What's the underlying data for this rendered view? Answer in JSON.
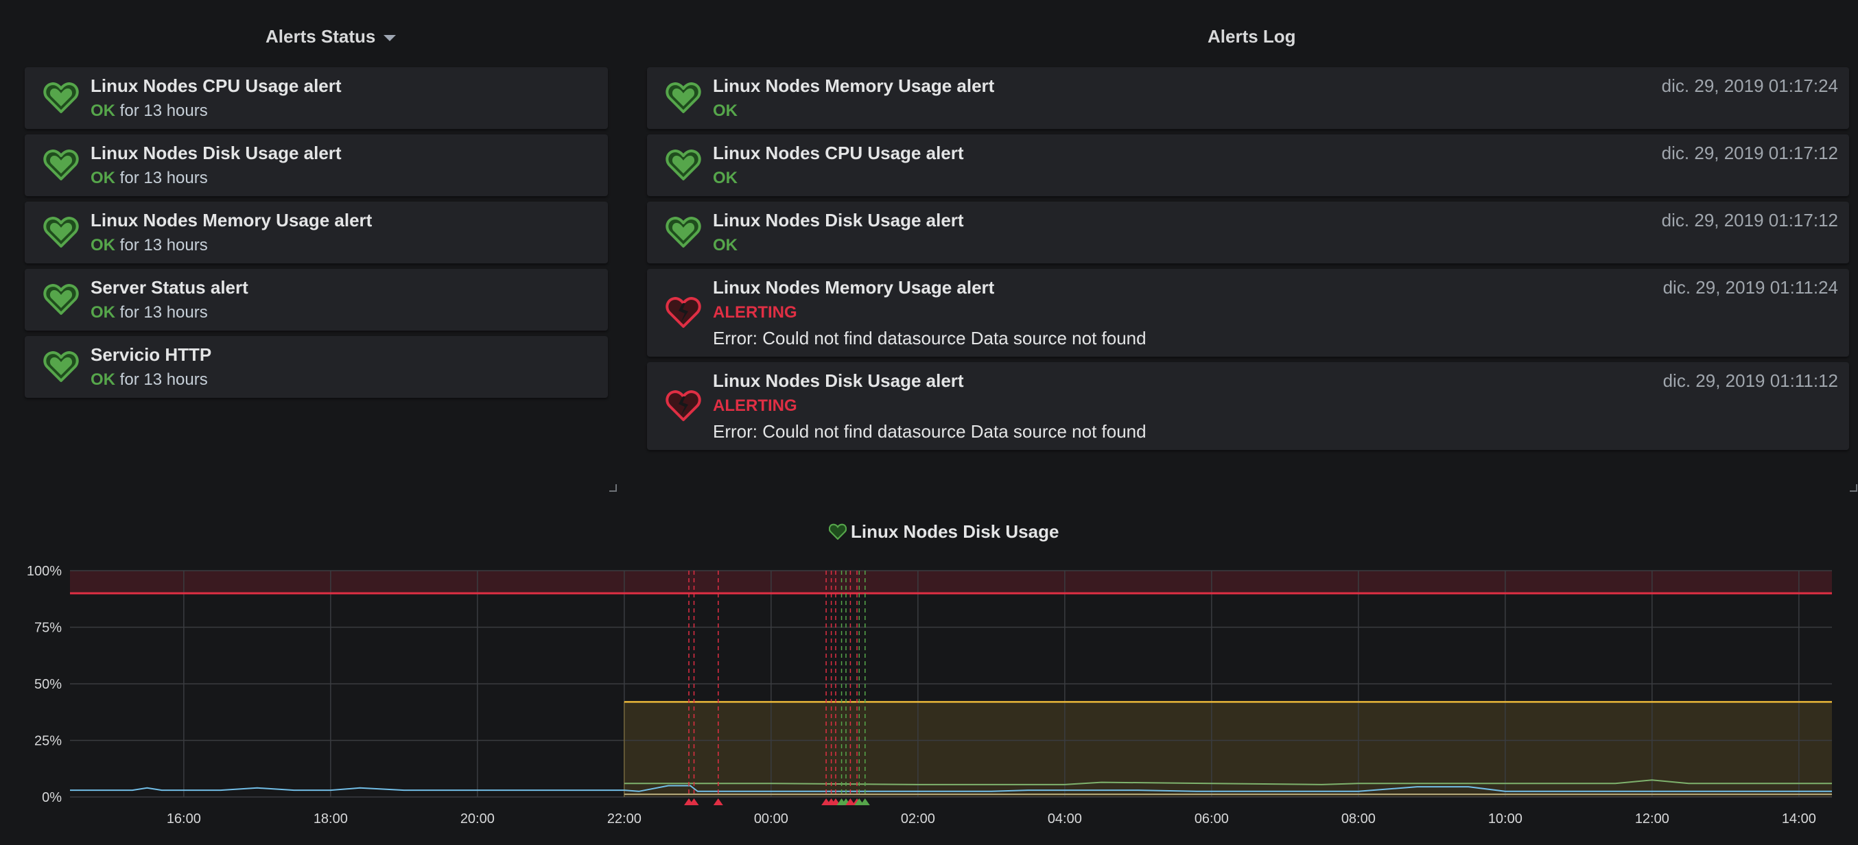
{
  "alerts_status": {
    "title": "Alerts Status",
    "items": [
      {
        "name": "Linux Nodes CPU Usage alert",
        "state": "OK",
        "duration": "for 13 hours"
      },
      {
        "name": "Linux Nodes Disk Usage alert",
        "state": "OK",
        "duration": "for 13 hours"
      },
      {
        "name": "Linux Nodes Memory Usage alert",
        "state": "OK",
        "duration": "for 13 hours"
      },
      {
        "name": "Server Status alert",
        "state": "OK",
        "duration": "for 13 hours"
      },
      {
        "name": "Servicio HTTP",
        "state": "OK",
        "duration": "for 13 hours"
      }
    ]
  },
  "alerts_log": {
    "title": "Alerts Log",
    "items": [
      {
        "name": "Linux Nodes Memory Usage alert",
        "state": "OK",
        "time": "dic. 29, 2019 01:17:24",
        "error": ""
      },
      {
        "name": "Linux Nodes CPU Usage alert",
        "state": "OK",
        "time": "dic. 29, 2019 01:17:12",
        "error": ""
      },
      {
        "name": "Linux Nodes Disk Usage alert",
        "state": "OK",
        "time": "dic. 29, 2019 01:17:12",
        "error": ""
      },
      {
        "name": "Linux Nodes Memory Usage alert",
        "state": "ALERTING",
        "time": "dic. 29, 2019 01:11:24",
        "error": "Error: Could not find datasource Data source not found"
      },
      {
        "name": "Linux Nodes Disk Usage alert",
        "state": "ALERTING",
        "time": "dic. 29, 2019 01:11:12",
        "error": "Error: Could not find datasource Data source not found"
      }
    ]
  },
  "colors": {
    "ok": "#56a64b",
    "alerting": "#e02f44",
    "threshold_critical": "#e02f44",
    "threshold_warning": "#eab839",
    "series_main": "#73bfe8",
    "series_secondary": "#7eb26d",
    "series_tertiary": "#b4a87a"
  },
  "chart_data": {
    "type": "line",
    "title": "Linux Nodes Disk Usage",
    "title_icon": "heart-icon",
    "y_ticks": [
      "0%",
      "25%",
      "50%",
      "75%",
      "100%"
    ],
    "ylim": [
      0,
      100
    ],
    "x_ticks": [
      "16:00",
      "18:00",
      "20:00",
      "22:00",
      "00:00",
      "02:00",
      "04:00",
      "06:00",
      "08:00",
      "10:00",
      "12:00",
      "14:00"
    ],
    "xlim_hours": [
      14.45,
      38.45
    ],
    "grid": true,
    "thresholds": [
      {
        "level": "critical",
        "value": 90
      },
      {
        "level": "warning",
        "value": 42,
        "from_hour": 22.0
      }
    ],
    "annotations": [
      {
        "hour": 22.88,
        "state": "alerting"
      },
      {
        "hour": 22.95,
        "state": "alerting"
      },
      {
        "hour": 23.28,
        "state": "alerting"
      },
      {
        "hour": 24.75,
        "state": "alerting"
      },
      {
        "hour": 24.82,
        "state": "alerting"
      },
      {
        "hour": 24.88,
        "state": "alerting"
      },
      {
        "hour": 24.96,
        "state": "ok"
      },
      {
        "hour": 25.02,
        "state": "ok"
      },
      {
        "hour": 25.08,
        "state": "alerting"
      },
      {
        "hour": 25.17,
        "state": "alerting"
      },
      {
        "hour": 25.2,
        "state": "ok"
      },
      {
        "hour": 25.28,
        "state": "ok"
      }
    ],
    "series": [
      {
        "color": "#73bfe8",
        "x": [
          14.45,
          15.3,
          15.5,
          15.7,
          16.0,
          16.5,
          17.0,
          17.5,
          18.0,
          18.4,
          19.0,
          19.5,
          19.8,
          20.5,
          21.0,
          22.0,
          22.2,
          22.6,
          22.9,
          23.0,
          23.5,
          24.0,
          25.0,
          26.0,
          27.0,
          27.5,
          28.0,
          29.0,
          29.8,
          30.5,
          31.0,
          32.0,
          32.8,
          33.5,
          34.0,
          35.0,
          35.5,
          36.0,
          37.0,
          38.45
        ],
        "y": [
          3,
          3,
          4,
          3,
          3,
          3,
          4,
          3,
          3,
          4,
          3,
          3,
          3,
          3,
          3,
          3,
          2.5,
          5,
          5,
          2.5,
          2.5,
          2.5,
          2.5,
          2.5,
          2.5,
          3,
          3,
          3,
          2.5,
          2.5,
          2.5,
          2.5,
          4.5,
          4.5,
          2.5,
          2.5,
          2.5,
          2.5,
          2.5,
          2.5
        ]
      },
      {
        "color": "#7eb26d",
        "x": [
          22.0,
          22.5,
          23.0,
          24.0,
          26.0,
          28.0,
          28.5,
          30.0,
          31.5,
          32.0,
          34.0,
          35.5,
          36.0,
          36.5,
          37.0,
          38.45
        ],
        "y": [
          6,
          6,
          6,
          6,
          5.5,
          5.5,
          6.5,
          6,
          5.5,
          6,
          6,
          6,
          7.5,
          6,
          6,
          6
        ]
      },
      {
        "color": "#b4a87a",
        "x": [
          22.0,
          38.45
        ],
        "y": [
          1.2,
          1.2
        ]
      }
    ]
  }
}
